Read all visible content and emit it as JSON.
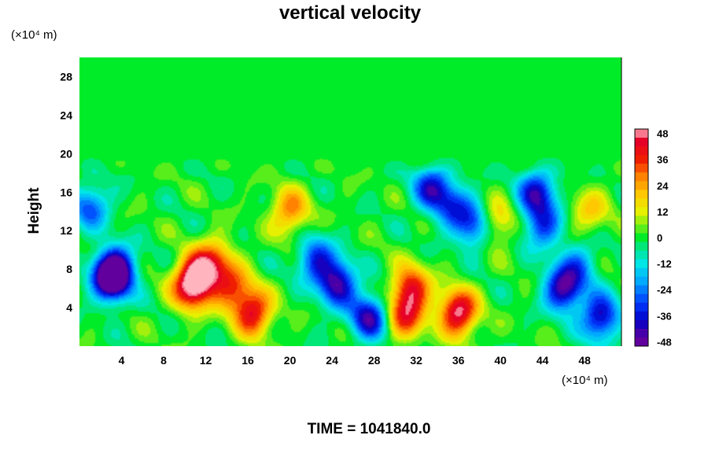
{
  "chart_data": {
    "type": "heatmap",
    "title": "vertical velocity",
    "ylabel": "Height",
    "x_unit_label": "(×10⁴ m)",
    "y_unit_label": "(×10⁴ m)",
    "footer": "TIME = 1041840.0",
    "xlim": [
      0,
      51.5
    ],
    "ylim": [
      0,
      30
    ],
    "x_ticks": [
      4,
      8,
      12,
      16,
      20,
      24,
      28,
      32,
      36,
      40,
      44,
      48
    ],
    "y_ticks": [
      4,
      8,
      12,
      16,
      20,
      24,
      28
    ],
    "colorbar": {
      "range": [
        -50,
        50
      ],
      "ticks": [
        48,
        36,
        24,
        12,
        0,
        -12,
        -24,
        -36,
        -48
      ]
    },
    "features": [
      {
        "x": 3.0,
        "y": 7.0,
        "value": -48
      },
      {
        "x": 3.5,
        "y": 8.0,
        "value": -38
      },
      {
        "x": 10.5,
        "y": 6.0,
        "value": 38
      },
      {
        "x": 11.5,
        "y": 7.5,
        "value": 44
      },
      {
        "x": 14.5,
        "y": 6.0,
        "value": 30
      },
      {
        "x": 16.5,
        "y": 3.5,
        "value": 42
      },
      {
        "x": 13.0,
        "y": 9.0,
        "value": 22
      },
      {
        "x": 20.0,
        "y": 14.0,
        "value": 28
      },
      {
        "x": 24.5,
        "y": 6.5,
        "value": -44
      },
      {
        "x": 22.5,
        "y": 9.0,
        "value": -32
      },
      {
        "x": 27.5,
        "y": 3.0,
        "value": -42
      },
      {
        "x": 31.5,
        "y": 6.0,
        "value": 40
      },
      {
        "x": 31.0,
        "y": 3.0,
        "value": 34
      },
      {
        "x": 36.0,
        "y": 3.5,
        "value": 50
      },
      {
        "x": 33.5,
        "y": 16.5,
        "value": -36
      },
      {
        "x": 35.5,
        "y": 14.5,
        "value": -26
      },
      {
        "x": 37.5,
        "y": 12.5,
        "value": -32
      },
      {
        "x": 39.5,
        "y": 12.8,
        "value": 22
      },
      {
        "x": 43.5,
        "y": 16.0,
        "value": -38
      },
      {
        "x": 44.0,
        "y": 12.5,
        "value": -30
      },
      {
        "x": 46.0,
        "y": 6.0,
        "value": -46
      },
      {
        "x": 47.5,
        "y": 8.5,
        "value": -20
      },
      {
        "x": 49.5,
        "y": 3.0,
        "value": -42
      },
      {
        "x": 48.5,
        "y": 14.0,
        "value": 18
      },
      {
        "x": 1.0,
        "y": 14.5,
        "value": -28
      }
    ]
  }
}
